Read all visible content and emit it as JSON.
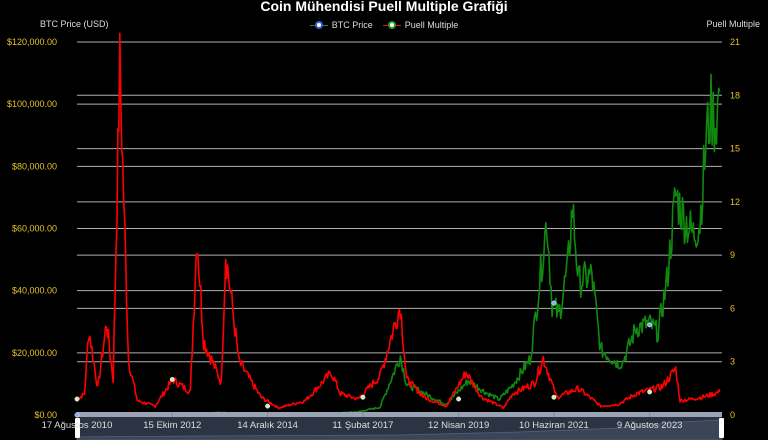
{
  "header": {
    "title": "Coin Mühendisi Puell Multiple Grafiği",
    "left_axis_label": "BTC Price (USD)",
    "right_axis_label": "Puell Multiple"
  },
  "legend": [
    {
      "label": "BTC Price",
      "line_color": "#1a8a1a",
      "marker_fill": "#ffffff",
      "marker_border": "#3a5bd9"
    },
    {
      "label": "Puell Multiple",
      "line_color": "#ff0000",
      "marker_fill": "#ffffff",
      "marker_border": "#2e9b2e"
    }
  ],
  "colors": {
    "background": "#000000",
    "grid": "#b0b0b0",
    "tick_text": "#e6c229",
    "btc_line": "#0f8a0f",
    "puell_line": "#ff0000",
    "navigator_bg": "#2c3444",
    "navigator_bar": "#9aa3b3"
  },
  "chart_data": {
    "type": "line",
    "title": "Coin Mühendisi Puell Multiple Grafiği",
    "xlabel": "",
    "ylabel": "BTC Price (USD)",
    "y2label": "Puell Multiple",
    "ylim": [
      0,
      120000
    ],
    "y2lim": [
      0,
      21
    ],
    "grid": true,
    "legend_position": "top",
    "left_ticks": [
      "$0.00",
      "$20,000.00",
      "$40,000.00",
      "$60,000.00",
      "$80,000.00",
      "$100,000.00",
      "$120,000.00"
    ],
    "right_ticks": [
      "0",
      "3",
      "6",
      "9",
      "12",
      "15",
      "18",
      "21"
    ],
    "x_ticks": [
      "17 Ağustos 2010",
      "15 Ekim 2012",
      "14 Aralık 2014",
      "11 Şubat 2017",
      "12 Nisan 2019",
      "10 Haziran 2021",
      "9 Ağustos 2023"
    ],
    "series": [
      {
        "name": "BTC Price",
        "axis": "left",
        "x": [
          2010.6,
          2012.0,
          2013.9,
          2015.0,
          2016.5,
          2017.0,
          2017.5,
          2017.96,
          2018.1,
          2018.5,
          2018.9,
          2019.0,
          2019.5,
          2019.9,
          2020.2,
          2020.5,
          2020.9,
          2021.0,
          2021.28,
          2021.4,
          2021.55,
          2021.75,
          2021.86,
          2022.0,
          2022.3,
          2022.5,
          2022.9,
          2023.0,
          2023.3,
          2023.6,
          2023.8,
          2024.0,
          2024.2,
          2024.4,
          2024.6,
          2024.75,
          2024.9,
          2025.0,
          2025.1,
          2025.2
        ],
        "values": [
          0,
          5,
          800,
          300,
          650,
          1000,
          2500,
          19000,
          10000,
          7000,
          4000,
          3600,
          11000,
          7200,
          5000,
          9500,
          18000,
          29000,
          63000,
          36000,
          32000,
          47000,
          67000,
          43000,
          45000,
          21000,
          16500,
          17000,
          28000,
          29500,
          26500,
          43000,
          71000,
          63000,
          58000,
          62000,
          90000,
          98000,
          94000,
          104000
        ]
      },
      {
        "name": "Puell Multiple",
        "axis": "right",
        "x": [
          2010.6,
          2010.8,
          2010.9,
          2011.1,
          2011.3,
          2011.45,
          2011.6,
          2011.8,
          2012.0,
          2012.4,
          2012.8,
          2013.2,
          2013.35,
          2013.5,
          2013.9,
          2014.0,
          2014.3,
          2014.8,
          2015.2,
          2015.8,
          2016.4,
          2016.6,
          2017.0,
          2017.5,
          2017.96,
          2018.1,
          2018.5,
          2019.0,
          2019.45,
          2019.8,
          2020.3,
          2020.5,
          2021.0,
          2021.2,
          2021.5,
          2022.0,
          2022.5,
          2022.9,
          2023.3,
          2023.9,
          2024.2,
          2024.3,
          2024.8,
          2025.2
        ],
        "values": [
          0.8,
          1.2,
          4.8,
          1.5,
          5.2,
          2.0,
          19.6,
          3.0,
          0.8,
          0.5,
          2.0,
          1.3,
          10.2,
          4.2,
          1.8,
          9.2,
          3.0,
          1.0,
          0.4,
          0.8,
          2.4,
          1.2,
          0.9,
          2.2,
          6.2,
          2.0,
          1.0,
          0.5,
          2.4,
          1.0,
          0.4,
          1.2,
          1.8,
          3.2,
          1.0,
          1.5,
          0.5,
          0.6,
          1.2,
          1.6,
          2.6,
          0.8,
          1.0,
          1.3
        ]
      }
    ]
  },
  "navigator": {
    "start_handle": "left-handle",
    "end_handle": "right-handle"
  }
}
